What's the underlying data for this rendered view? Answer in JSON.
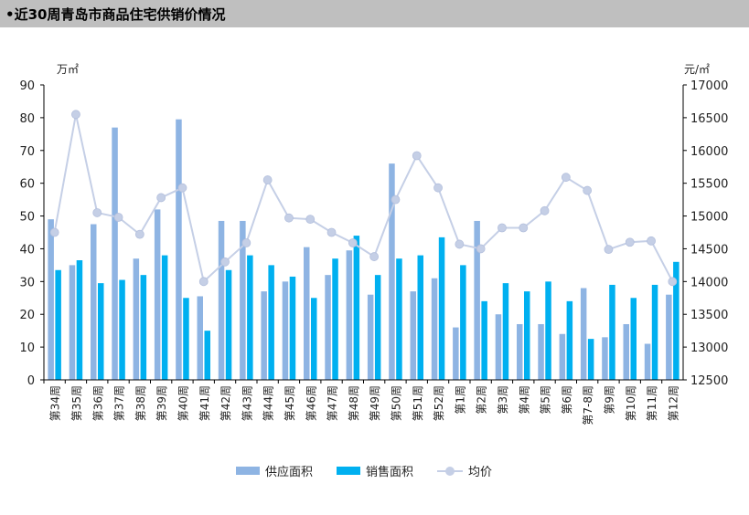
{
  "header": {
    "title": "•近30周青岛市商品住宅供销价情况"
  },
  "colors": {
    "supply": "#8eb4e3",
    "sales": "#00b0f0",
    "price": "#c5cfe6",
    "axis": "#000000",
    "title_bg": "#bfbfbf"
  },
  "chart_data": {
    "type": "bar",
    "title": "•近30周青岛市商品住宅供销价情况",
    "categories": [
      "第34周",
      "第35周",
      "第36周",
      "第37周",
      "第38周",
      "第39周",
      "第40周",
      "第41周",
      "第42周",
      "第43周",
      "第44周",
      "第45周",
      "第46周",
      "第47周",
      "第48周",
      "第49周",
      "第50周",
      "第51周",
      "第52周",
      "第1周",
      "第2周",
      "第3周",
      "第4周",
      "第5周",
      "第6周",
      "第7-8周",
      "第9周",
      "第10周",
      "第11周",
      "第12周"
    ],
    "left_axis_unit": "万㎡",
    "right_axis_unit": "元/㎡",
    "ylim": [
      0,
      90
    ],
    "yticks": [
      0,
      10,
      20,
      30,
      40,
      50,
      60,
      70,
      80,
      90
    ],
    "y2lim": [
      12500,
      17000
    ],
    "y2ticks": [
      12500,
      13000,
      13500,
      14000,
      14500,
      15000,
      15500,
      16000,
      16500,
      17000
    ],
    "legend_position": "bottom",
    "series": [
      {
        "name": "供应面积",
        "kind": "bar",
        "axis": "left",
        "values": [
          49,
          35,
          47.5,
          77,
          37,
          52,
          79.5,
          25.5,
          48.5,
          48.5,
          27,
          30,
          40.5,
          32,
          39.5,
          26,
          66,
          27,
          31,
          16,
          48.5,
          20,
          17,
          17,
          14,
          28,
          13,
          17,
          11,
          26
        ]
      },
      {
        "name": "销售面积",
        "kind": "bar",
        "axis": "left",
        "values": [
          33.5,
          36.5,
          29.5,
          30.5,
          32,
          38,
          25,
          15,
          33.5,
          38,
          35,
          31.5,
          25,
          37,
          44,
          32,
          37,
          38,
          43.5,
          35,
          24,
          29.5,
          27,
          30,
          24,
          12.5,
          29,
          25,
          29,
          36
        ]
      },
      {
        "name": "均价",
        "kind": "line",
        "axis": "right",
        "values": [
          14750,
          16550,
          15050,
          14980,
          14720,
          15280,
          15430,
          14000,
          14300,
          14590,
          15550,
          14970,
          14950,
          14750,
          14590,
          14380,
          15250,
          15920,
          15430,
          14570,
          14500,
          14820,
          14820,
          15080,
          15590,
          15390,
          14490,
          14600,
          14620,
          14000
        ]
      }
    ]
  }
}
